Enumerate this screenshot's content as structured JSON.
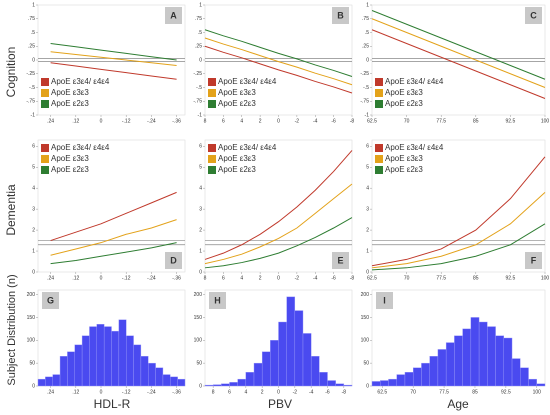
{
  "row_labels": [
    "Cognition",
    "Dementia",
    "Subject Distribution (n)"
  ],
  "column_labels": [
    "HDL-R",
    "PBV",
    "Age"
  ],
  "chart_data": [
    {
      "type": "line",
      "label": "A",
      "label_position": "upper right",
      "legend": "lower left",
      "xlim": [
        0.3,
        -0.4
      ],
      "ylim": [
        -1,
        1
      ],
      "xticks": [
        {
          "value": 0.24,
          "label": ".24"
        },
        {
          "value": 0.12,
          "label": ".12"
        },
        0,
        {
          "value": -0.12,
          "label": "-.12"
        },
        {
          "value": -0.24,
          "label": "-.24"
        },
        {
          "value": -0.36,
          "label": "-.36"
        }
      ],
      "yticks": [
        1,
        {
          "value": 0.75,
          "label": ".75"
        },
        {
          "value": 0.5,
          "label": ".5"
        },
        {
          "value": 0.25,
          "label": ".25"
        },
        0,
        {
          "value": -0.25,
          "label": "-.25"
        },
        {
          "value": -0.5,
          "label": "-.5"
        },
        {
          "value": -0.75,
          "label": "-.75"
        },
        -1
      ],
      "hlines": [
        0.03,
        -0.03
      ],
      "x": [
        0.24,
        0.12,
        0,
        -0.12,
        -0.24,
        -0.36
      ],
      "series": [
        {
          "name": "ApoE ε3ε4/ ε4ε4",
          "color": "#c0392b",
          "values": [
            -0.05,
            -0.11,
            -0.17,
            -0.23,
            -0.29,
            -0.35
          ]
        },
        {
          "name": "ApoE ε3ε3",
          "color": "#e3a21a",
          "values": [
            0.15,
            0.1,
            0.05,
            0,
            -0.05,
            -0.1
          ]
        },
        {
          "name": "ApoE ε2ε3",
          "color": "#2e7d32",
          "values": [
            0.3,
            0.24,
            0.18,
            0.12,
            0.06,
            0
          ]
        }
      ]
    },
    {
      "type": "line",
      "label": "B",
      "label_position": "upper right",
      "legend": "lower left",
      "xlim": [
        8,
        -8
      ],
      "ylim": [
        -1,
        1
      ],
      "xticks": [
        8,
        6,
        4,
        2,
        0,
        -2,
        -4,
        -6,
        -8
      ],
      "yticks": [
        1,
        {
          "value": 0.75,
          "label": ".75"
        },
        {
          "value": 0.5,
          "label": ".5"
        },
        {
          "value": 0.25,
          "label": ".25"
        },
        0,
        {
          "value": -0.25,
          "label": "-.25"
        },
        {
          "value": -0.5,
          "label": "-.5"
        },
        {
          "value": -0.75,
          "label": "-.75"
        },
        -1
      ],
      "hlines": [
        0.03,
        -0.03
      ],
      "x": [
        8,
        6,
        4,
        2,
        0,
        -2,
        -4,
        -6,
        -8
      ],
      "series": [
        {
          "name": "ApoE ε3ε4/ ε4ε4",
          "color": "#c0392b",
          "values": [
            0.25,
            0.14,
            0.04,
            -0.07,
            -0.18,
            -0.28,
            -0.39,
            -0.49,
            -0.6
          ]
        },
        {
          "name": "ApoE ε3ε3",
          "color": "#e3a21a",
          "values": [
            0.4,
            0.29,
            0.19,
            0.08,
            -0.03,
            -0.13,
            -0.24,
            -0.34,
            -0.45
          ]
        },
        {
          "name": "ApoE ε2ε3",
          "color": "#2e7d32",
          "values": [
            0.55,
            0.44,
            0.34,
            0.23,
            0.12,
            0.02,
            -0.09,
            -0.19,
            -0.3
          ]
        }
      ]
    },
    {
      "type": "line",
      "label": "C",
      "label_position": "upper right",
      "legend": "lower left",
      "xlim": [
        62.5,
        100
      ],
      "ylim": [
        -1,
        1
      ],
      "xticks": [
        62.5,
        70,
        77.5,
        85,
        92.5,
        100
      ],
      "yticks": [
        1,
        {
          "value": 0.75,
          "label": ".75"
        },
        {
          "value": 0.5,
          "label": ".5"
        },
        {
          "value": 0.25,
          "label": ".25"
        },
        0,
        {
          "value": -0.25,
          "label": "-.25"
        },
        {
          "value": -0.5,
          "label": "-.5"
        },
        {
          "value": -0.75,
          "label": "-.75"
        },
        -1
      ],
      "hlines": [
        0.03,
        -0.03
      ],
      "x": [
        62.5,
        70,
        77.5,
        85,
        92.5,
        100
      ],
      "series": [
        {
          "name": "ApoE ε3ε4/ ε4ε4",
          "color": "#c0392b",
          "values": [
            0.55,
            0.3,
            0.05,
            -0.2,
            -0.45,
            -0.7
          ]
        },
        {
          "name": "ApoE ε3ε3",
          "color": "#e3a21a",
          "values": [
            0.75,
            0.5,
            0.25,
            0,
            -0.25,
            -0.5
          ]
        },
        {
          "name": "ApoE ε2ε3",
          "color": "#2e7d32",
          "values": [
            0.9,
            0.65,
            0.4,
            0.15,
            -0.1,
            -0.35
          ]
        }
      ]
    },
    {
      "type": "line",
      "label": "D",
      "label_position": "lower right",
      "legend": "upper left",
      "xlim": [
        0.3,
        -0.4
      ],
      "ylim": [
        0,
        6.3
      ],
      "xticks": [
        {
          "value": 0.24,
          "label": ".24"
        },
        {
          "value": 0.12,
          "label": ".12"
        },
        0,
        {
          "value": -0.12,
          "label": "-.12"
        },
        {
          "value": -0.24,
          "label": "-.24"
        },
        {
          "value": -0.36,
          "label": "-.36"
        }
      ],
      "yticks": [
        0,
        1,
        2,
        3,
        4,
        5,
        6
      ],
      "hlines": [
        1.5,
        1.3
      ],
      "x": [
        0.24,
        0.12,
        0,
        -0.12,
        -0.24,
        -0.36
      ],
      "series": [
        {
          "name": "ApoE ε3ε4/ ε4ε4",
          "color": "#c0392b",
          "values": [
            1.5,
            1.9,
            2.3,
            2.8,
            3.3,
            3.8
          ]
        },
        {
          "name": "ApoE ε3ε3",
          "color": "#e3a21a",
          "values": [
            0.8,
            1.1,
            1.4,
            1.8,
            2.1,
            2.5
          ]
        },
        {
          "name": "ApoE ε2ε3",
          "color": "#2e7d32",
          "values": [
            0.4,
            0.55,
            0.75,
            0.95,
            1.15,
            1.4
          ]
        }
      ]
    },
    {
      "type": "line",
      "label": "E",
      "label_position": "lower right",
      "legend": "upper left",
      "xlim": [
        8,
        -8
      ],
      "ylim": [
        0,
        6.3
      ],
      "xticks": [
        8,
        6,
        4,
        2,
        0,
        -2,
        -4,
        -6,
        -8
      ],
      "yticks": [
        0,
        1,
        2,
        3,
        4,
        5,
        6
      ],
      "hlines": [
        1.5,
        1.3
      ],
      "x": [
        8,
        6,
        4,
        2,
        0,
        -2,
        -4,
        -6,
        -8
      ],
      "series": [
        {
          "name": "ApoE ε3ε4/ ε4ε4",
          "color": "#c0392b",
          "values": [
            0.6,
            0.9,
            1.3,
            1.8,
            2.4,
            3.1,
            3.9,
            4.8,
            5.8
          ]
        },
        {
          "name": "ApoE ε3ε3",
          "color": "#e3a21a",
          "values": [
            0.4,
            0.6,
            0.85,
            1.2,
            1.6,
            2.1,
            2.8,
            3.5,
            4.2
          ]
        },
        {
          "name": "ApoE ε2ε3",
          "color": "#2e7d32",
          "values": [
            0.2,
            0.3,
            0.45,
            0.65,
            0.9,
            1.25,
            1.65,
            2.1,
            2.6
          ]
        }
      ]
    },
    {
      "type": "line",
      "label": "F",
      "label_position": "lower right",
      "legend": "upper left",
      "xlim": [
        62.5,
        100
      ],
      "ylim": [
        0,
        6.3
      ],
      "xticks": [
        62.5,
        70,
        77.5,
        85,
        92.5,
        100
      ],
      "yticks": [
        0,
        1,
        2,
        3,
        4,
        5,
        6
      ],
      "hlines": [
        1.5,
        1.3
      ],
      "x": [
        62.5,
        70,
        77.5,
        85,
        92.5,
        100
      ],
      "series": [
        {
          "name": "ApoE ε3ε4/ ε4ε4",
          "color": "#c0392b",
          "values": [
            0.3,
            0.6,
            1.1,
            2.0,
            3.5,
            5.5
          ]
        },
        {
          "name": "ApoE ε3ε3",
          "color": "#e3a21a",
          "values": [
            0.2,
            0.4,
            0.75,
            1.3,
            2.3,
            3.8
          ]
        },
        {
          "name": "ApoE ε2ε3",
          "color": "#2e7d32",
          "values": [
            0.1,
            0.2,
            0.4,
            0.75,
            1.3,
            2.3
          ]
        }
      ]
    },
    {
      "type": "histogram",
      "label": "G",
      "label_position": "upper left",
      "color": "#4a4af0",
      "xlim": [
        0.3,
        -0.4
      ],
      "ylim": [
        0,
        210
      ],
      "xticks": [
        {
          "value": 0.24,
          "label": ".24"
        },
        {
          "value": 0.12,
          "label": ".12"
        },
        0,
        {
          "value": -0.12,
          "label": "-.12"
        },
        {
          "value": -0.24,
          "label": "-.24"
        },
        {
          "value": -0.36,
          "label": "-.36"
        }
      ],
      "yticks": [
        0,
        50,
        100,
        150,
        200
      ],
      "bins": [
        0.3,
        0.265,
        0.23,
        0.195,
        0.16,
        0.125,
        0.09,
        0.055,
        0.02,
        -0.015,
        -0.05,
        -0.085,
        -0.12,
        -0.155,
        -0.19,
        -0.225,
        -0.26,
        -0.295,
        -0.33,
        -0.365,
        -0.4
      ],
      "values": [
        15,
        20,
        25,
        65,
        75,
        90,
        110,
        130,
        135,
        130,
        120,
        145,
        110,
        90,
        65,
        50,
        40,
        25,
        20,
        15
      ]
    },
    {
      "type": "histogram",
      "label": "H",
      "label_position": "upper left",
      "color": "#4a4af0",
      "xlim": [
        9,
        -9
      ],
      "ylim": [
        0,
        210
      ],
      "xticks": [
        8,
        6,
        4,
        2,
        0,
        -2,
        -4,
        -6,
        -8
      ],
      "yticks": [
        0,
        50,
        100,
        150,
        200
      ],
      "bins": [
        9,
        8,
        7,
        6,
        5,
        4,
        3,
        2,
        1,
        0,
        -1,
        -2,
        -3,
        -4,
        -5,
        -6,
        -7,
        -8,
        -9
      ],
      "values": [
        2,
        3,
        5,
        8,
        15,
        30,
        50,
        75,
        100,
        140,
        195,
        165,
        115,
        65,
        30,
        12,
        5,
        2
      ]
    },
    {
      "type": "histogram",
      "label": "I",
      "label_position": "upper left",
      "color": "#4a4af0",
      "xlim": [
        60,
        102
      ],
      "ylim": [
        0,
        210
      ],
      "xticks": [
        62.5,
        70,
        77.5,
        85,
        92.5,
        100
      ],
      "yticks": [
        0,
        50,
        100,
        150,
        200
      ],
      "bins": [
        60,
        62,
        64,
        66,
        68,
        70,
        72,
        74,
        76,
        78,
        80,
        82,
        84,
        86,
        88,
        90,
        92,
        94,
        96,
        98,
        100,
        102
      ],
      "values": [
        10,
        12,
        15,
        25,
        30,
        40,
        50,
        65,
        80,
        95,
        110,
        125,
        150,
        140,
        130,
        110,
        105,
        60,
        40,
        15,
        5
      ]
    }
  ]
}
